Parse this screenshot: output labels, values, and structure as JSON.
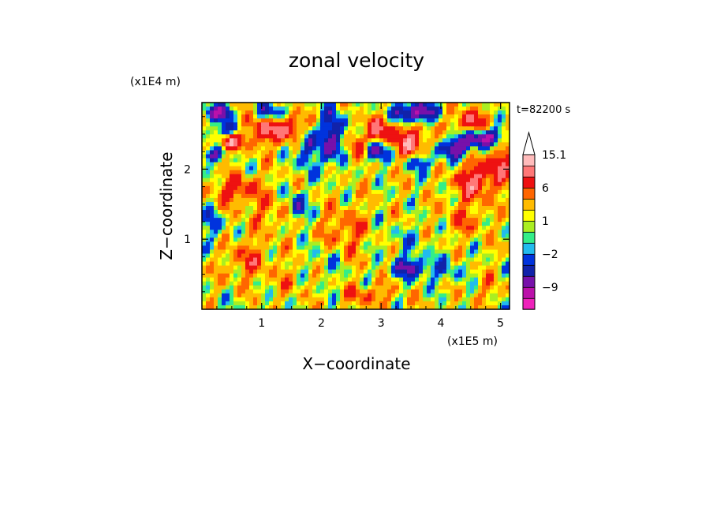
{
  "chart_data": {
    "type": "heatmap",
    "title": "zonal velocity",
    "xlabel": "X−coordinate",
    "ylabel": "Z−coordinate",
    "x_exponent_label": "(x1E5 m)",
    "y_exponent_label": "(x1E4 m)",
    "time_label": "t=82200 s",
    "xlim": [
      0,
      5.15
    ],
    "ylim": [
      0,
      2.95
    ],
    "x_ticks": [
      1,
      2,
      3,
      4,
      5
    ],
    "y_ticks": [
      1,
      2
    ],
    "x_tick_labels": [
      "1",
      "2",
      "3",
      "4",
      "5"
    ],
    "y_tick_labels": [
      "1",
      "2"
    ],
    "colorbar": {
      "levels": [
        -15.1,
        -12,
        -9,
        -6,
        -4,
        -2,
        -1,
        0,
        1,
        2,
        4,
        6,
        9,
        12,
        15.1
      ],
      "colors": [
        "#ee22bb",
        "#bb11aa",
        "#7711aa",
        "#1122aa",
        "#0033dd",
        "#22bbee",
        "#33ee88",
        "#aaee22",
        "#ffff00",
        "#ffbb00",
        "#ff6600",
        "#ee1111",
        "#ff7777",
        "#ffbbbb"
      ],
      "labels": [
        {
          "value": 15.1,
          "text": "15.1"
        },
        {
          "value": 6,
          "text": "6"
        },
        {
          "value": 1,
          "text": "1"
        },
        {
          "value": -2,
          "text": "−2"
        },
        {
          "value": -9,
          "text": "−9"
        }
      ],
      "extend": "max"
    },
    "features": [
      {
        "x": 0.25,
        "z": 2.8,
        "amp": -10,
        "sx": 0.25,
        "sz": 0.12
      },
      {
        "x": 0.5,
        "z": 2.55,
        "amp": -9,
        "sx": 0.25,
        "sz": 0.12
      },
      {
        "x": 0.15,
        "z": 2.2,
        "amp": -8,
        "sx": 0.18,
        "sz": 0.1
      },
      {
        "x": 0.45,
        "z": 2.4,
        "amp": 9,
        "sx": 0.18,
        "sz": 0.12
      },
      {
        "x": 0.9,
        "z": 2.55,
        "amp": 8,
        "sx": 0.35,
        "sz": 0.2
      },
      {
        "x": 1.15,
        "z": 2.8,
        "amp": -8,
        "sx": 0.25,
        "sz": 0.12
      },
      {
        "x": 1.5,
        "z": 2.6,
        "amp": 8,
        "sx": 0.3,
        "sz": 0.2
      },
      {
        "x": 1.75,
        "z": 2.35,
        "amp": -8,
        "sx": 0.15,
        "sz": 0.35
      },
      {
        "x": 2.2,
        "z": 2.45,
        "amp": -9,
        "sx": 0.2,
        "sz": 0.4
      },
      {
        "x": 2.6,
        "z": 2.3,
        "amp": 7,
        "sx": 0.15,
        "sz": 0.25
      },
      {
        "x": 2.9,
        "z": 2.25,
        "amp": -10,
        "sx": 0.2,
        "sz": 0.15
      },
      {
        "x": 3.0,
        "z": 2.55,
        "amp": 7,
        "sx": 0.25,
        "sz": 0.2
      },
      {
        "x": 3.5,
        "z": 2.4,
        "amp": 8,
        "sx": 0.3,
        "sz": 0.25
      },
      {
        "x": 3.55,
        "z": 2.8,
        "amp": -12,
        "sx": 0.35,
        "sz": 0.15
      },
      {
        "x": 3.65,
        "z": 2.1,
        "amp": -6,
        "sx": 0.25,
        "sz": 0.12
      },
      {
        "x": 4.25,
        "z": 2.3,
        "amp": -9,
        "sx": 0.3,
        "sz": 0.15
      },
      {
        "x": 4.5,
        "z": 2.65,
        "amp": 7,
        "sx": 0.3,
        "sz": 0.2
      },
      {
        "x": 4.7,
        "z": 2.45,
        "amp": -12,
        "sx": 0.35,
        "sz": 0.12
      },
      {
        "x": 4.6,
        "z": 1.85,
        "amp": 8,
        "sx": 0.35,
        "sz": 0.25
      },
      {
        "x": 5.0,
        "z": 2.1,
        "amp": 7,
        "sx": 0.2,
        "sz": 0.25
      },
      {
        "x": 1.6,
        "z": 1.45,
        "amp": -8,
        "sx": 0.15,
        "sz": 0.2
      },
      {
        "x": 0.6,
        "z": 1.7,
        "amp": 6,
        "sx": 0.4,
        "sz": 0.2
      },
      {
        "x": 0.2,
        "z": 1.2,
        "amp": -5,
        "sx": 0.15,
        "sz": 0.25
      },
      {
        "x": 1.2,
        "z": 1.35,
        "amp": 3,
        "sx": 0.4,
        "sz": 0.2
      },
      {
        "x": 2.4,
        "z": 1.1,
        "amp": 4,
        "sx": 0.4,
        "sz": 0.35
      },
      {
        "x": 2.1,
        "z": 0.7,
        "amp": -2,
        "sx": 0.3,
        "sz": 0.3
      },
      {
        "x": 3.5,
        "z": 0.6,
        "amp": -8,
        "sx": 0.3,
        "sz": 0.15
      },
      {
        "x": 4.1,
        "z": 0.55,
        "amp": -3,
        "sx": 0.35,
        "sz": 0.2
      },
      {
        "x": 3.4,
        "z": 1.0,
        "amp": -2,
        "sx": 0.5,
        "sz": 0.2
      },
      {
        "x": 4.4,
        "z": 1.3,
        "amp": 3,
        "sx": 0.4,
        "sz": 0.3
      },
      {
        "x": 0.8,
        "z": 0.7,
        "amp": 4,
        "sx": 0.4,
        "sz": 0.3
      },
      {
        "x": 1.5,
        "z": 0.4,
        "amp": 2,
        "sx": 0.3,
        "sz": 0.2
      },
      {
        "x": 2.8,
        "z": 0.2,
        "amp": 4,
        "sx": 0.4,
        "sz": 0.15
      },
      {
        "x": 4.8,
        "z": 0.3,
        "amp": 2,
        "sx": 0.3,
        "sz": 0.2
      },
      {
        "x": 0.3,
        "z": 0.1,
        "amp": -1,
        "sx": 0.4,
        "sz": 0.1
      }
    ]
  }
}
